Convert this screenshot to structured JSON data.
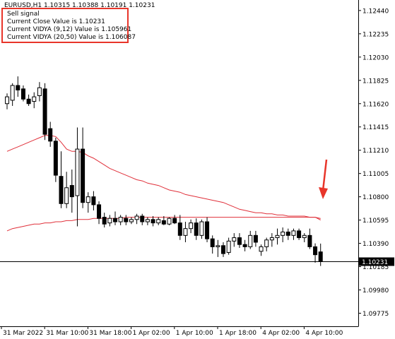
{
  "header": {
    "symbol_info": "EURUSD,H1  1.10315 1.10388 1.10191 1.10231"
  },
  "info_lines": [
    "Sell signal",
    "Current Close Value is 1.10231",
    "Current VIDYA (9,12) Value is 1.105961",
    "Current VIDYA (20,50) Value is 1.106087"
  ],
  "colors": {
    "background": "#ffffff",
    "candle": "#000000",
    "vidya_line": "#e0303a",
    "arrow": "#e8352a",
    "info_box_border": "#e8352a"
  },
  "annotation_icon": "down-arrow-icon",
  "current_price_label": "1.10231",
  "chart_data": {
    "type": "candlestick",
    "title": "",
    "y_axis": {
      "labels": [
        "1.12440",
        "1.12235",
        "1.12030",
        "1.11825",
        "1.11620",
        "1.11415",
        "1.11210",
        "1.11005",
        "1.10800",
        "1.10595",
        "1.10390",
        "1.10185",
        "1.09980",
        "1.09775"
      ],
      "min": 1.0966,
      "max": 1.1252
    },
    "x_axis_labels": [
      "31 Mar 2022",
      "31 Mar 10:00",
      "31 Mar 18:00",
      "1 Apr 02:00",
      "1 Apr 10:00",
      "1 Apr 18:00",
      "4 Apr 02:00",
      "4 Apr 10:00"
    ],
    "current_price": 1.10231,
    "candles": [
      {
        "o": 1.1162,
        "h": 1.1171,
        "l": 1.1157,
        "c": 1.1168
      },
      {
        "o": 1.1165,
        "h": 1.118,
        "l": 1.116,
        "c": 1.1178
      },
      {
        "o": 1.1178,
        "h": 1.1186,
        "l": 1.1168,
        "c": 1.1174
      },
      {
        "o": 1.1175,
        "h": 1.1178,
        "l": 1.1164,
        "c": 1.1166
      },
      {
        "o": 1.1166,
        "h": 1.117,
        "l": 1.116,
        "c": 1.1162
      },
      {
        "o": 1.1164,
        "h": 1.1172,
        "l": 1.1158,
        "c": 1.1168
      },
      {
        "o": 1.1169,
        "h": 1.1181,
        "l": 1.1164,
        "c": 1.1176
      },
      {
        "o": 1.1175,
        "h": 1.118,
        "l": 1.113,
        "c": 1.1135
      },
      {
        "o": 1.114,
        "h": 1.1146,
        "l": 1.1124,
        "c": 1.1129
      },
      {
        "o": 1.1129,
        "h": 1.1132,
        "l": 1.1093,
        "c": 1.1099
      },
      {
        "o": 1.1098,
        "h": 1.112,
        "l": 1.107,
        "c": 1.1074
      },
      {
        "o": 1.1074,
        "h": 1.1102,
        "l": 1.107,
        "c": 1.1088
      },
      {
        "o": 1.109,
        "h": 1.1104,
        "l": 1.1066,
        "c": 1.108
      },
      {
        "o": 1.1081,
        "h": 1.1141,
        "l": 1.1054,
        "c": 1.1122
      },
      {
        "o": 1.1122,
        "h": 1.1141,
        "l": 1.107,
        "c": 1.1075
      },
      {
        "o": 1.1075,
        "h": 1.1084,
        "l": 1.1066,
        "c": 1.108
      },
      {
        "o": 1.108,
        "h": 1.1085,
        "l": 1.1068,
        "c": 1.1073
      },
      {
        "o": 1.1073,
        "h": 1.1076,
        "l": 1.1056,
        "c": 1.1061
      },
      {
        "o": 1.1062,
        "h": 1.1066,
        "l": 1.1053,
        "c": 1.1056
      },
      {
        "o": 1.1057,
        "h": 1.1064,
        "l": 1.1054,
        "c": 1.1061
      },
      {
        "o": 1.1061,
        "h": 1.1067,
        "l": 1.1055,
        "c": 1.1058
      },
      {
        "o": 1.1058,
        "h": 1.1064,
        "l": 1.1055,
        "c": 1.1062
      },
      {
        "o": 1.1061,
        "h": 1.1064,
        "l": 1.1055,
        "c": 1.1058
      },
      {
        "o": 1.1058,
        "h": 1.1062,
        "l": 1.1056,
        "c": 1.106
      },
      {
        "o": 1.106,
        "h": 1.1065,
        "l": 1.1056,
        "c": 1.1063
      },
      {
        "o": 1.1063,
        "h": 1.1065,
        "l": 1.1055,
        "c": 1.1058
      },
      {
        "o": 1.1058,
        "h": 1.1062,
        "l": 1.1055,
        "c": 1.106
      },
      {
        "o": 1.106,
        "h": 1.1063,
        "l": 1.1054,
        "c": 1.1057
      },
      {
        "o": 1.1057,
        "h": 1.1062,
        "l": 1.1055,
        "c": 1.106
      },
      {
        "o": 1.1059,
        "h": 1.1063,
        "l": 1.1055,
        "c": 1.1056
      },
      {
        "o": 1.1056,
        "h": 1.1062,
        "l": 1.1055,
        "c": 1.1061
      },
      {
        "o": 1.1061,
        "h": 1.1064,
        "l": 1.1056,
        "c": 1.1057
      },
      {
        "o": 1.1057,
        "h": 1.1064,
        "l": 1.1042,
        "c": 1.1046
      },
      {
        "o": 1.1046,
        "h": 1.1058,
        "l": 1.104,
        "c": 1.1052
      },
      {
        "o": 1.1052,
        "h": 1.106,
        "l": 1.1048,
        "c": 1.1057
      },
      {
        "o": 1.1057,
        "h": 1.1061,
        "l": 1.1042,
        "c": 1.1046
      },
      {
        "o": 1.1046,
        "h": 1.106,
        "l": 1.1043,
        "c": 1.1058
      },
      {
        "o": 1.1058,
        "h": 1.1062,
        "l": 1.104,
        "c": 1.1043
      },
      {
        "o": 1.1043,
        "h": 1.1046,
        "l": 1.103,
        "c": 1.1036
      },
      {
        "o": 1.1036,
        "h": 1.1042,
        "l": 1.1027,
        "c": 1.1037
      },
      {
        "o": 1.1037,
        "h": 1.104,
        "l": 1.1027,
        "c": 1.103
      },
      {
        "o": 1.1031,
        "h": 1.1044,
        "l": 1.1029,
        "c": 1.1041
      },
      {
        "o": 1.1041,
        "h": 1.1048,
        "l": 1.1036,
        "c": 1.1044
      },
      {
        "o": 1.1044,
        "h": 1.1048,
        "l": 1.1035,
        "c": 1.1038
      },
      {
        "o": 1.1038,
        "h": 1.1042,
        "l": 1.1032,
        "c": 1.1036
      },
      {
        "o": 1.1036,
        "h": 1.105,
        "l": 1.1034,
        "c": 1.1046
      },
      {
        "o": 1.1046,
        "h": 1.105,
        "l": 1.1036,
        "c": 1.104
      },
      {
        "o": 1.1032,
        "h": 1.1038,
        "l": 1.1028,
        "c": 1.1036
      },
      {
        "o": 1.1036,
        "h": 1.1044,
        "l": 1.1032,
        "c": 1.1042
      },
      {
        "o": 1.1042,
        "h": 1.1048,
        "l": 1.1036,
        "c": 1.1044
      },
      {
        "o": 1.1044,
        "h": 1.1052,
        "l": 1.1038,
        "c": 1.1046
      },
      {
        "o": 1.1046,
        "h": 1.1053,
        "l": 1.104,
        "c": 1.1049
      },
      {
        "o": 1.1049,
        "h": 1.1052,
        "l": 1.1042,
        "c": 1.1046
      },
      {
        "o": 1.1046,
        "h": 1.1052,
        "l": 1.1042,
        "c": 1.105
      },
      {
        "o": 1.105,
        "h": 1.1052,
        "l": 1.1042,
        "c": 1.1044
      },
      {
        "o": 1.1044,
        "h": 1.1048,
        "l": 1.104,
        "c": 1.1046
      },
      {
        "o": 1.1046,
        "h": 1.1052,
        "l": 1.1034,
        "c": 1.1036
      },
      {
        "o": 1.1036,
        "h": 1.1039,
        "l": 1.1022,
        "c": 1.1029
      },
      {
        "o": 1.10315,
        "h": 1.10388,
        "l": 1.10191,
        "c": 1.10231
      }
    ],
    "series": [
      {
        "style": "line",
        "values": [
          1.112,
          1.1122,
          1.1124,
          1.1126,
          1.1128,
          1.113,
          1.1132,
          1.1134,
          1.1134,
          1.1133,
          1.1128,
          1.1122,
          1.112,
          1.112,
          1.1119,
          1.1116,
          1.1114,
          1.1111,
          1.1108,
          1.1105,
          1.1103,
          1.1101,
          1.1099,
          1.1097,
          1.1095,
          1.1094,
          1.1092,
          1.1091,
          1.109,
          1.1088,
          1.1086,
          1.1085,
          1.1084,
          1.1082,
          1.1081,
          1.108,
          1.1079,
          1.1078,
          1.1077,
          1.1076,
          1.1075,
          1.1073,
          1.1071,
          1.1069,
          1.1068,
          1.1067,
          1.1066,
          1.1066,
          1.1065,
          1.1065,
          1.1064,
          1.1064,
          1.1063,
          1.1063,
          1.1063,
          1.1063,
          1.1062,
          1.1062,
          1.10596
        ]
      },
      {
        "style": "line",
        "values": [
          1.105,
          1.1052,
          1.1053,
          1.1054,
          1.1055,
          1.1056,
          1.1056,
          1.1057,
          1.1057,
          1.1058,
          1.1058,
          1.1059,
          1.1059,
          1.106,
          1.106,
          1.106,
          1.1061,
          1.1061,
          1.1061,
          1.1061,
          1.1061,
          1.1061,
          1.1062,
          1.1062,
          1.1062,
          1.1062,
          1.1062,
          1.1062,
          1.1062,
          1.1062,
          1.1062,
          1.1062,
          1.1062,
          1.1062,
          1.1062,
          1.1062,
          1.1062,
          1.1062,
          1.1062,
          1.1062,
          1.1062,
          1.1062,
          1.1062,
          1.1062,
          1.1062,
          1.1062,
          1.1062,
          1.1062,
          1.1062,
          1.1062,
          1.1062,
          1.1062,
          1.1062,
          1.1062,
          1.1062,
          1.1062,
          1.1062,
          1.1062,
          1.106087
        ]
      }
    ]
  }
}
